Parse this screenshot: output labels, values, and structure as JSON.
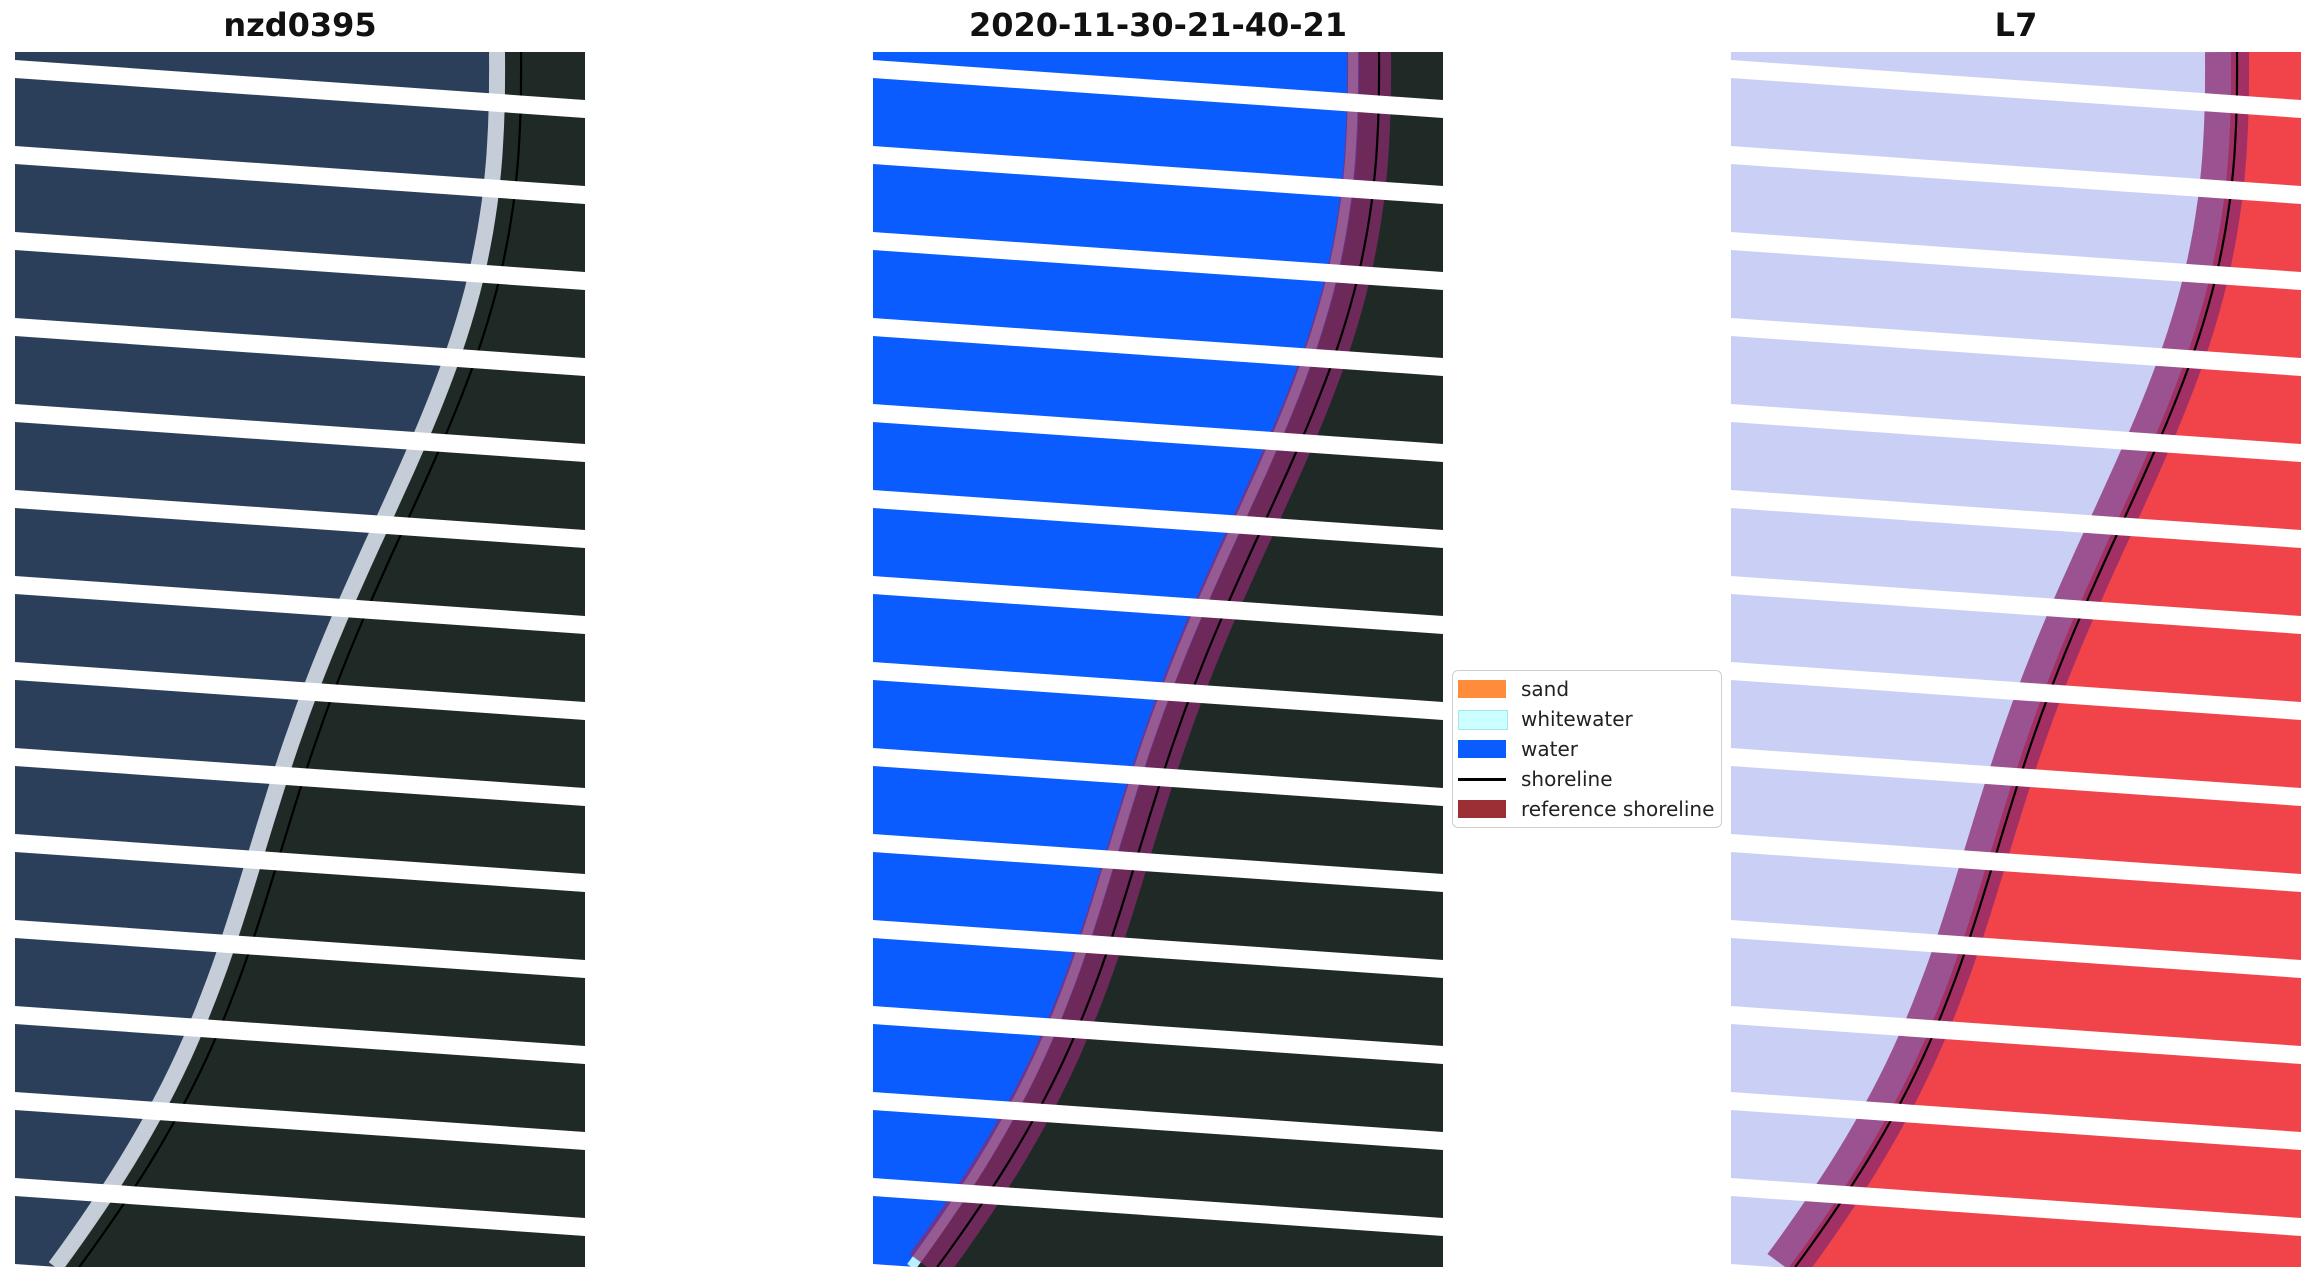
{
  "panels": [
    {
      "title": "nzd0395",
      "kind": "rgb"
    },
    {
      "title": "2020-11-30-21-40-21",
      "kind": "classified"
    },
    {
      "title": "L7",
      "kind": "index"
    }
  ],
  "legend": {
    "items": [
      {
        "label": "sand",
        "color": "#ff8c3a",
        "type": "patch"
      },
      {
        "label": "whitewater",
        "color": "#ccffff",
        "type": "patch"
      },
      {
        "label": "water",
        "color": "#0a5cff",
        "type": "patch"
      },
      {
        "label": "shoreline",
        "color": "#000000",
        "type": "line"
      },
      {
        "label": "reference shoreline",
        "color": "#9b2f35",
        "type": "patch"
      }
    ]
  },
  "colors": {
    "land_dark": "#1f2a26",
    "ocean_rgb": "#2b3f5a",
    "surf": "#dfe6ee",
    "water_class": "#0a5cff",
    "reference_band": "#8a2a6e",
    "index_blue": "#c9cff5",
    "index_red": "#f0444a",
    "gap_stripe": "#ffffff"
  }
}
